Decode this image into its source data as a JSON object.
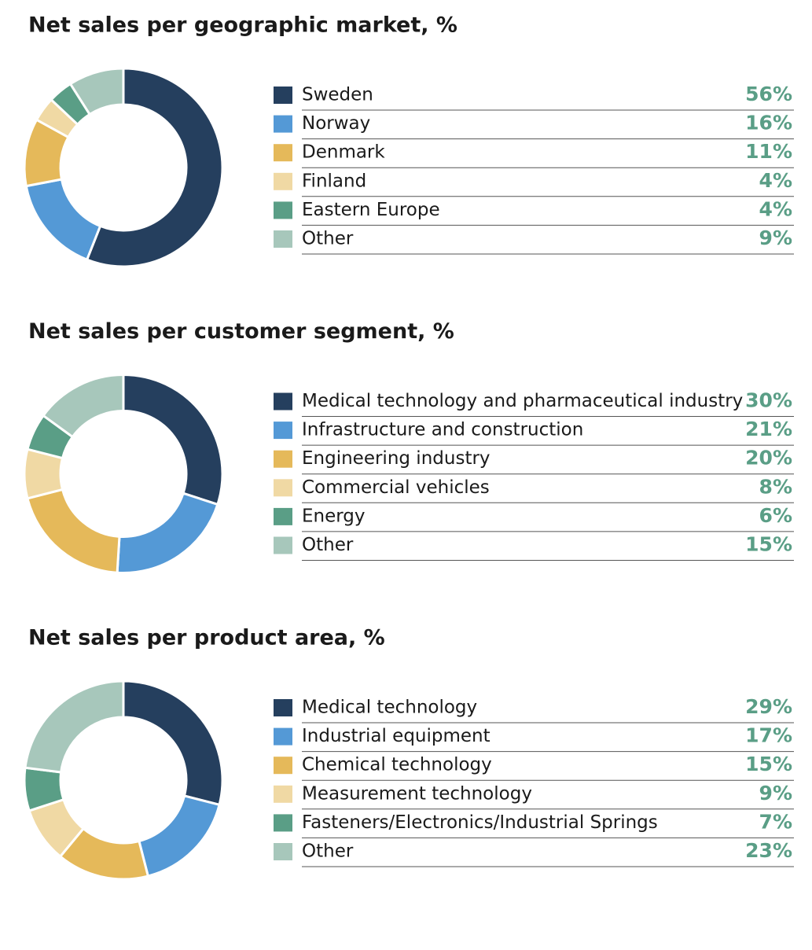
{
  "chart_data": [
    {
      "type": "donut",
      "title": "Net sales per geographic market, %",
      "categories": [
        "Sweden",
        "Norway",
        "Denmark",
        "Finland",
        "Eastern Europe",
        "Other"
      ],
      "values": [
        56,
        16,
        11,
        4,
        4,
        9
      ],
      "value_labels": [
        "56%",
        "16%",
        "11%",
        "4%",
        "4%",
        "9%"
      ],
      "colors": [
        "#253f5e",
        "#5499d6",
        "#e5b95a",
        "#f0d9a4",
        "#5a9e86",
        "#a7c7bb"
      ]
    },
    {
      "type": "donut",
      "title": "Net sales per customer segment, %",
      "categories": [
        "Medical technology and pharmaceutical industry",
        "Infrastructure and construction",
        "Engineering industry",
        "Commercial vehicles",
        "Energy",
        "Other"
      ],
      "values": [
        30,
        21,
        20,
        8,
        6,
        15
      ],
      "value_labels": [
        "30%",
        "21%",
        "20%",
        "8%",
        "6%",
        "15%"
      ],
      "colors": [
        "#253f5e",
        "#5499d6",
        "#e5b95a",
        "#f0d9a4",
        "#5a9e86",
        "#a7c7bb"
      ]
    },
    {
      "type": "donut",
      "title": "Net sales per product area, %",
      "categories": [
        "Medical technology",
        "Industrial equipment",
        "Chemical technology",
        "Measurement technology",
        "Fasteners/Electronics/Industrial Springs",
        "Other"
      ],
      "values": [
        29,
        17,
        15,
        9,
        7,
        23
      ],
      "value_labels": [
        "29%",
        "17%",
        "15%",
        "9%",
        "7%",
        "23%"
      ],
      "colors": [
        "#253f5e",
        "#5499d6",
        "#e5b95a",
        "#f0d9a4",
        "#5a9e86",
        "#a7c7bb"
      ]
    }
  ]
}
